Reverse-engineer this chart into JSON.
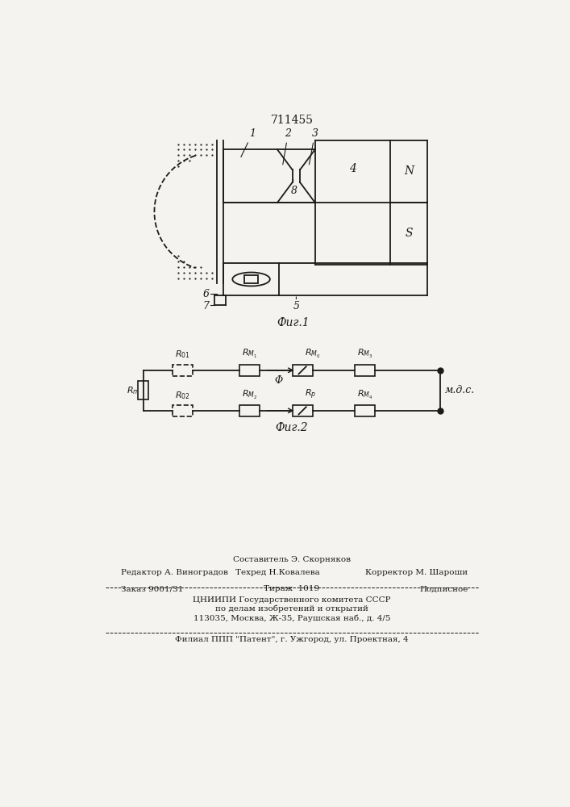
{
  "patent_number": "711455",
  "bg_color": "#f5f3ef",
  "fig1_caption": "Фиг.1",
  "fig2_caption": "Фиг.2",
  "footer_line1": "Составитель Э. Скорняков",
  "footer_line2_left": "Редактор А. Виноградов",
  "footer_line2_mid": "Техред Н.Ковалева",
  "footer_line2_right": "Корректор М. Шароши",
  "footer_line3_left": "Заказ 9001/31",
  "footer_line3_mid": "Тираж  1019",
  "footer_line3_right": "Подписное",
  "footer_line4": "ЦНИИПИ Государственного комитета СССР",
  "footer_line5": "по делам изобретений и открытий",
  "footer_line6": "113035, Москва, Ж-35, Раушская наб., д. 4/5",
  "footer_line7": "Филиал ППП \"Патент\", г. Ужгород, ул. Проектная, 4"
}
